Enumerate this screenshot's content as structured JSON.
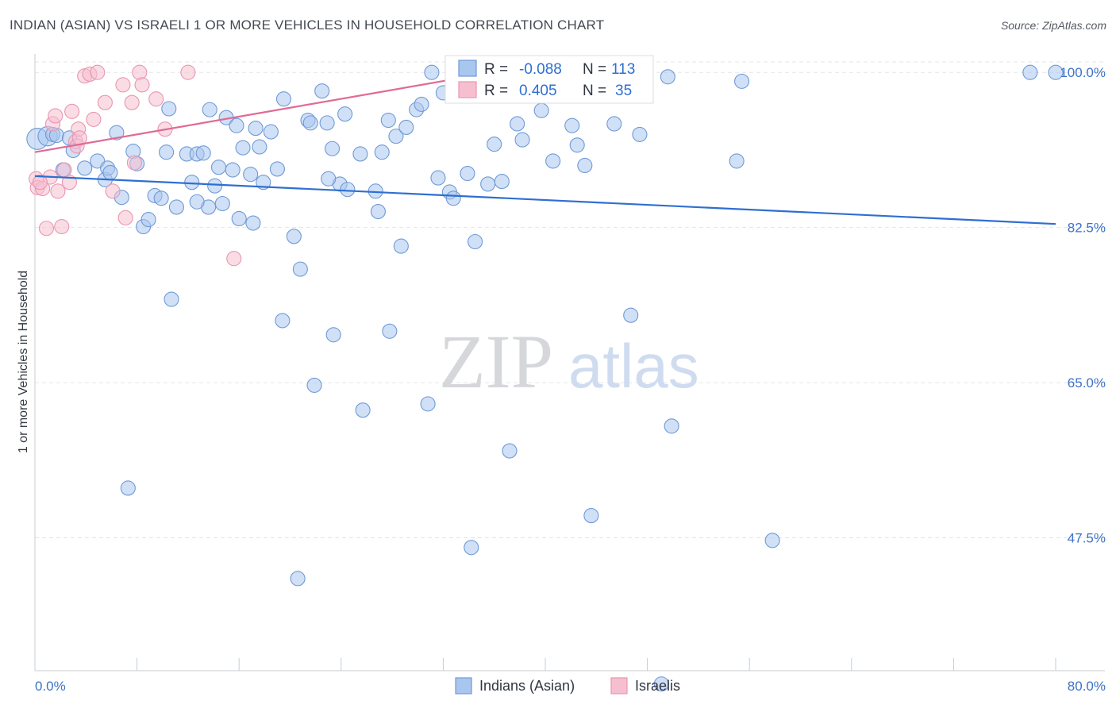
{
  "title": "INDIAN (ASIAN) VS ISRAELI 1 OR MORE VEHICLES IN HOUSEHOLD CORRELATION CHART",
  "source": "Source: ZipAtlas.com",
  "watermark": {
    "zip": "ZIP",
    "atlas": "atlas"
  },
  "colors": {
    "blue_fill": "#a9c6ef",
    "blue_stroke": "#6f9ad6",
    "blue_line": "#2f6fd0",
    "pink_fill": "#f6bfd0",
    "pink_stroke": "#e996b2",
    "pink_line": "#e06a95",
    "tick_label": "#3c72c8",
    "grid": "#e3e6ea"
  },
  "legend_box": {
    "rows": [
      {
        "r_label": "R =",
        "r_value": "-0.088",
        "n_label": "N =",
        "n_value": "113",
        "color": "blue"
      },
      {
        "r_label": "R =",
        "r_value": "0.405",
        "n_label": "N =",
        "n_value": "35",
        "color": "pink"
      }
    ]
  },
  "bottom_legend": [
    {
      "label": "Indians (Asian)",
      "color": "blue"
    },
    {
      "label": "Israelis",
      "color": "pink"
    }
  ],
  "chart_data": {
    "type": "scatter",
    "title": "INDIAN (ASIAN) VS ISRAELI 1 OR MORE VEHICLES IN HOUSEHOLD CORRELATION CHART",
    "xlabel": "",
    "ylabel": "1 or more Vehicles in Household",
    "xlim": [
      0,
      80
    ],
    "ylim": [
      32.5,
      101.9
    ],
    "x_tick_labels": [
      "0.0%",
      "80.0%"
    ],
    "y_ticks": [
      47.5,
      65.0,
      82.5,
      100.0
    ],
    "y_tick_labels": [
      "47.5%",
      "65.0%",
      "82.5%",
      "100.0%"
    ],
    "grid": true,
    "legend_placement": "top-center",
    "series": [
      {
        "name": "Indians (Asian)",
        "color": "blue",
        "trend": {
          "x": [
            0,
            80
          ],
          "y": [
            88.3,
            82.9
          ]
        },
        "points": [
          [
            0.2,
            92.5,
            1.6
          ],
          [
            1.0,
            92.8,
            1.0
          ],
          [
            1.4,
            93.0,
            0.6
          ],
          [
            1.7,
            92.9,
            0.6
          ],
          [
            2.2,
            89.0,
            0.6
          ],
          [
            2.7,
            92.6,
            0.6
          ],
          [
            3.0,
            91.2,
            0.6
          ],
          [
            3.9,
            89.2,
            0.6
          ],
          [
            4.9,
            90.0,
            0.6
          ],
          [
            5.5,
            87.9,
            0.6
          ],
          [
            5.7,
            89.2,
            0.6
          ],
          [
            5.9,
            88.7,
            0.6
          ],
          [
            6.4,
            93.2,
            0.6
          ],
          [
            6.8,
            85.9,
            0.6
          ],
          [
            7.7,
            91.1,
            0.6
          ],
          [
            8.0,
            89.7,
            0.6
          ],
          [
            8.5,
            82.6,
            0.6
          ],
          [
            8.9,
            83.4,
            0.6
          ],
          [
            9.4,
            86.1,
            0.6
          ],
          [
            9.9,
            85.8,
            0.6
          ],
          [
            10.3,
            91.0,
            0.6
          ],
          [
            10.5,
            95.9,
            0.6
          ],
          [
            10.7,
            74.4,
            0.6
          ],
          [
            11.1,
            84.8,
            0.6
          ],
          [
            11.9,
            90.8,
            0.6
          ],
          [
            12.3,
            87.6,
            0.6
          ],
          [
            12.7,
            90.8,
            0.6
          ],
          [
            13.2,
            90.9,
            0.6
          ],
          [
            13.7,
            95.8,
            0.6
          ],
          [
            14.1,
            87.2,
            0.6
          ],
          [
            14.4,
            89.3,
            0.6
          ],
          [
            14.7,
            85.2,
            0.6
          ],
          [
            15.0,
            94.9,
            0.6
          ],
          [
            15.5,
            89.0,
            0.6
          ],
          [
            15.8,
            94.0,
            0.6
          ],
          [
            16.0,
            83.5,
            0.6
          ],
          [
            16.3,
            91.5,
            0.6
          ],
          [
            16.9,
            88.5,
            0.6
          ],
          [
            17.3,
            93.7,
            0.6
          ],
          [
            17.6,
            91.6,
            0.6
          ],
          [
            17.9,
            87.6,
            0.6
          ],
          [
            18.5,
            93.3,
            0.6
          ],
          [
            19.0,
            89.1,
            0.6
          ],
          [
            19.4,
            72.0,
            0.6
          ],
          [
            19.5,
            97.0,
            0.6
          ],
          [
            20.3,
            81.5,
            0.6
          ],
          [
            20.8,
            77.8,
            0.6
          ],
          [
            21.4,
            94.6,
            0.6
          ],
          [
            21.6,
            94.3,
            0.6
          ],
          [
            21.9,
            64.7,
            0.6
          ],
          [
            22.5,
            97.9,
            0.6
          ],
          [
            22.9,
            94.3,
            0.6
          ],
          [
            23.3,
            91.4,
            0.6
          ],
          [
            23.4,
            70.4,
            0.6
          ],
          [
            23.9,
            87.4,
            0.6
          ],
          [
            24.3,
            95.3,
            0.6
          ],
          [
            24.5,
            86.8,
            0.6
          ],
          [
            25.5,
            90.8,
            0.6
          ],
          [
            25.7,
            61.9,
            0.6
          ],
          [
            26.7,
            86.6,
            0.6
          ],
          [
            26.9,
            84.3,
            0.6
          ],
          [
            27.2,
            91.0,
            0.6
          ],
          [
            27.7,
            94.6,
            0.6
          ],
          [
            27.8,
            70.8,
            0.6
          ],
          [
            28.3,
            92.8,
            0.6
          ],
          [
            28.7,
            80.4,
            0.6
          ],
          [
            29.1,
            93.8,
            0.6
          ],
          [
            29.9,
            95.8,
            0.6
          ],
          [
            30.3,
            96.4,
            0.6
          ],
          [
            30.8,
            62.6,
            0.6
          ],
          [
            31.1,
            100.0,
            0.6
          ],
          [
            31.6,
            88.1,
            0.6
          ],
          [
            32.0,
            97.7,
            0.6
          ],
          [
            32.5,
            86.5,
            0.6
          ],
          [
            32.8,
            85.8,
            0.6
          ],
          [
            34.2,
            46.4,
            0.6
          ],
          [
            34.5,
            80.9,
            0.6
          ],
          [
            34.8,
            97.6,
            0.6
          ],
          [
            35.5,
            87.4,
            0.6
          ],
          [
            36.0,
            91.9,
            0.6
          ],
          [
            36.6,
            87.7,
            0.6
          ],
          [
            37.2,
            57.3,
            0.6
          ],
          [
            37.8,
            94.2,
            0.6
          ],
          [
            38.2,
            92.4,
            0.6
          ],
          [
            39.7,
            95.7,
            0.6
          ],
          [
            40.6,
            90.0,
            0.6
          ],
          [
            42.1,
            94.0,
            0.6
          ],
          [
            42.5,
            91.8,
            0.6
          ],
          [
            43.1,
            89.5,
            0.6
          ],
          [
            45.4,
            94.2,
            0.6
          ],
          [
            46.7,
            72.6,
            0.6
          ],
          [
            47.4,
            93.0,
            0.6
          ],
          [
            49.6,
            99.5,
            0.6
          ],
          [
            49.9,
            60.1,
            0.6
          ],
          [
            55.0,
            90.0,
            0.6
          ],
          [
            55.4,
            99.0,
            0.6
          ],
          [
            57.8,
            47.2,
            0.6
          ],
          [
            78.0,
            100.0,
            0.6
          ],
          [
            80.0,
            100.0,
            0.6
          ],
          [
            20.6,
            42.9,
            0.6
          ],
          [
            7.3,
            53.1,
            0.6
          ],
          [
            43.6,
            50.0,
            0.6
          ],
          [
            49.1,
            31.0,
            0.6
          ],
          [
            46.0,
            100.0,
            0.6
          ],
          [
            13.6,
            84.8,
            0.6
          ],
          [
            17.1,
            83.0,
            0.6
          ],
          [
            23.0,
            88.0,
            0.6
          ],
          [
            33.9,
            88.6,
            0.6
          ],
          [
            35.0,
            99.1,
            0.6
          ],
          [
            41.8,
            99.5,
            0.6
          ],
          [
            46.4,
            100.0,
            0.6
          ],
          [
            45.8,
            100.0,
            0.6
          ],
          [
            12.7,
            85.4,
            0.6
          ]
        ]
      },
      {
        "name": "Israelis",
        "color": "pink",
        "trend": {
          "x": [
            0,
            35.5
          ],
          "y": [
            91.0,
            99.9
          ]
        },
        "points": [
          [
            0.1,
            88.0,
            0.6
          ],
          [
            0.2,
            87.0,
            0.6
          ],
          [
            0.6,
            86.9,
            0.6
          ],
          [
            0.9,
            82.4,
            0.6
          ],
          [
            1.2,
            88.2,
            0.6
          ],
          [
            1.4,
            94.2,
            0.6
          ],
          [
            1.6,
            95.1,
            0.6
          ],
          [
            1.8,
            86.6,
            0.6
          ],
          [
            2.1,
            82.6,
            0.6
          ],
          [
            2.3,
            89.0,
            0.6
          ],
          [
            2.7,
            87.6,
            0.6
          ],
          [
            2.9,
            95.6,
            0.6
          ],
          [
            3.2,
            92.2,
            0.6
          ],
          [
            3.3,
            91.7,
            0.6
          ],
          [
            3.4,
            93.6,
            0.6
          ],
          [
            3.5,
            92.6,
            0.6
          ],
          [
            3.9,
            99.6,
            0.6
          ],
          [
            4.3,
            99.8,
            0.6
          ],
          [
            4.6,
            94.7,
            0.6
          ],
          [
            4.9,
            100.0,
            0.6
          ],
          [
            5.5,
            96.6,
            0.6
          ],
          [
            6.1,
            86.6,
            0.6
          ],
          [
            6.9,
            98.6,
            0.6
          ],
          [
            7.1,
            83.6,
            0.6
          ],
          [
            7.6,
            96.6,
            0.6
          ],
          [
            7.8,
            89.8,
            0.6
          ],
          [
            8.2,
            100.0,
            0.6
          ],
          [
            8.4,
            98.6,
            0.6
          ],
          [
            9.5,
            97.0,
            0.6
          ],
          [
            10.2,
            93.6,
            0.6
          ],
          [
            12.0,
            100.0,
            0.6
          ],
          [
            15.6,
            79.0,
            0.6
          ],
          [
            33.6,
            100.0,
            0.6
          ],
          [
            47.6,
            100.0,
            0.6
          ],
          [
            0.4,
            87.6,
            0.6
          ]
        ]
      }
    ]
  }
}
